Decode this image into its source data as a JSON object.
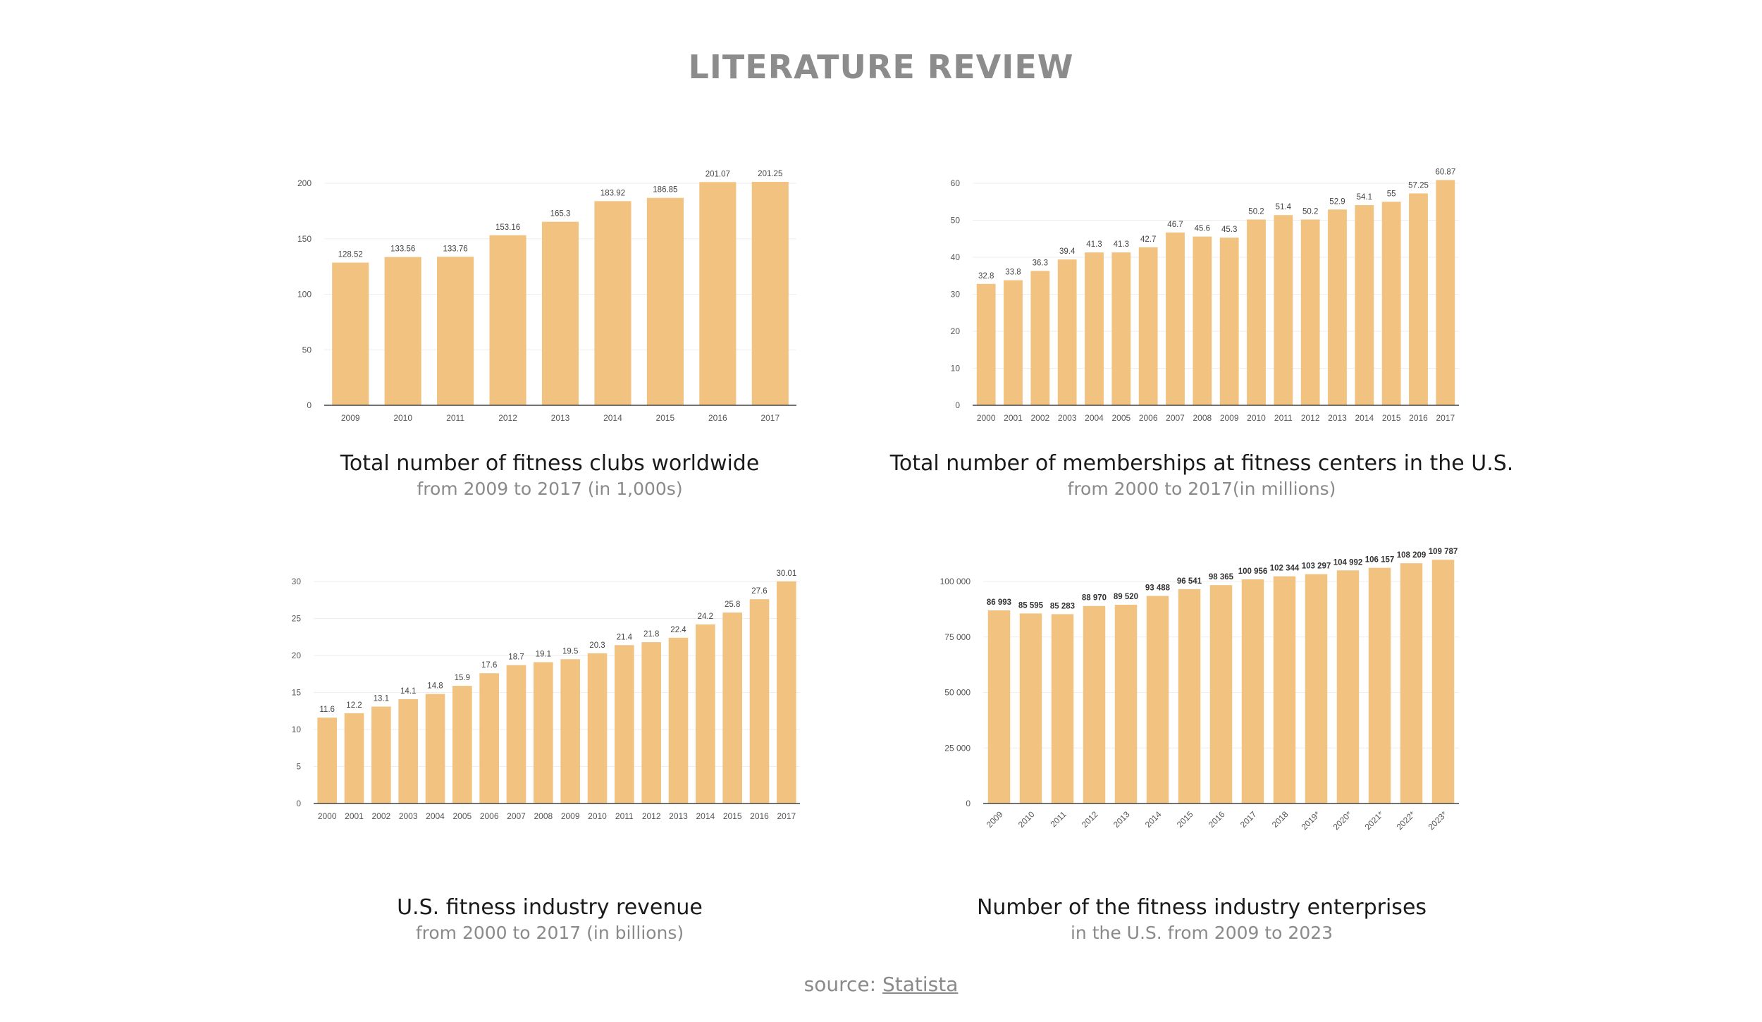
{
  "page": {
    "title": "LITERATURE REVIEW",
    "source_prefix": "source: ",
    "source_link": "Statista"
  },
  "colors": {
    "bar": "#f2c280",
    "axis": "#444444",
    "grid": "#eeeeee"
  },
  "chart_data": [
    {
      "type": "bar",
      "title": "Total number of fitness clubs worldwide",
      "subtitle": "from 2009 to 2017 (in 1,000s)",
      "categories": [
        "2009",
        "2010",
        "2011",
        "2012",
        "2013",
        "2014",
        "2015",
        "2016",
        "2017"
      ],
      "values": [
        128.52,
        133.56,
        133.76,
        153.16,
        165.3,
        183.92,
        186.85,
        201.07,
        201.25
      ],
      "value_labels": [
        "128.52",
        "133.56",
        "133.76",
        "153.16",
        "165.3",
        "183.92",
        "186.85",
        "201.07",
        "201.25"
      ],
      "ylim": [
        0,
        200
      ],
      "yticks": [
        0,
        50,
        100,
        150,
        200
      ],
      "ytick_labels": [
        "0",
        "50",
        "100",
        "150",
        "200"
      ],
      "grid": true
    },
    {
      "type": "bar",
      "title": "Total number of memberships at fitness centers in the U.S.",
      "subtitle": "from 2000 to 2017(in millions)",
      "categories": [
        "2000",
        "2001",
        "2002",
        "2003",
        "2004",
        "2005",
        "2006",
        "2007",
        "2008",
        "2009",
        "2010",
        "2011",
        "2012",
        "2013",
        "2014",
        "2015",
        "2016",
        "2017"
      ],
      "values": [
        32.8,
        33.8,
        36.3,
        39.4,
        41.3,
        41.3,
        42.7,
        46.7,
        45.6,
        45.3,
        50.2,
        51.4,
        50.2,
        52.9,
        54.1,
        55,
        57.25,
        60.87
      ],
      "value_labels": [
        "32.8",
        "33.8",
        "36.3",
        "39.4",
        "41.3",
        "41.3",
        "42.7",
        "46.7",
        "45.6",
        "45.3",
        "50.2",
        "51.4",
        "50.2",
        "52.9",
        "54.1",
        "55",
        "57.25",
        "60.87"
      ],
      "ylim": [
        0,
        60
      ],
      "yticks": [
        0,
        10,
        20,
        30,
        40,
        50,
        60
      ],
      "ytick_labels": [
        "0",
        "10",
        "20",
        "30",
        "40",
        "50",
        "60"
      ],
      "grid": true
    },
    {
      "type": "bar",
      "title": "U.S. fitness industry revenue",
      "subtitle": "from 2000 to 2017 (in billions)",
      "categories": [
        "2000",
        "2001",
        "2002",
        "2003",
        "2004",
        "2005",
        "2006",
        "2007",
        "2008",
        "2009",
        "2010",
        "2011",
        "2012",
        "2013",
        "2014",
        "2015",
        "2016",
        "2017"
      ],
      "values": [
        11.6,
        12.2,
        13.1,
        14.1,
        14.8,
        15.9,
        17.6,
        18.7,
        19.1,
        19.5,
        20.3,
        21.4,
        21.8,
        22.4,
        24.2,
        25.8,
        27.6,
        30.01
      ],
      "value_labels": [
        "11.6",
        "12.2",
        "13.1",
        "14.1",
        "14.8",
        "15.9",
        "17.6",
        "18.7",
        "19.1",
        "19.5",
        "20.3",
        "21.4",
        "21.8",
        "22.4",
        "24.2",
        "25.8",
        "27.6",
        "30.01"
      ],
      "ylim": [
        0,
        30
      ],
      "yticks": [
        0,
        5,
        10,
        15,
        20,
        25,
        30
      ],
      "ytick_labels": [
        "0",
        "5",
        "10",
        "15",
        "20",
        "25",
        "30"
      ],
      "grid": true
    },
    {
      "type": "bar",
      "title": "Number of the fitness industry enterprises",
      "subtitle": "in the U.S. from 2009 to 2023",
      "categories": [
        "2009",
        "2010",
        "2011",
        "2012",
        "2013",
        "2014",
        "2015",
        "2016",
        "2017",
        "2018",
        "2019*",
        "2020*",
        "2021*",
        "2022*",
        "2023*"
      ],
      "values": [
        86993,
        85595,
        85283,
        88970,
        89520,
        93488,
        96541,
        98365,
        100956,
        102344,
        103297,
        104992,
        106157,
        108209,
        109787
      ],
      "value_labels": [
        "86 993",
        "85 595",
        "85 283",
        "88 970",
        "89 520",
        "93 488",
        "96 541",
        "98 365",
        "100 956",
        "102 344",
        "103 297",
        "104 992",
        "106 157",
        "108 209",
        "109 787"
      ],
      "ylim": [
        0,
        100000
      ],
      "yticks": [
        0,
        25000,
        50000,
        75000,
        100000
      ],
      "ytick_labels": [
        "0",
        "25 000",
        "50 000",
        "75 000",
        "100 000"
      ],
      "grid": true,
      "rotated_xlabels": true,
      "bold_value_labels": true
    }
  ]
}
